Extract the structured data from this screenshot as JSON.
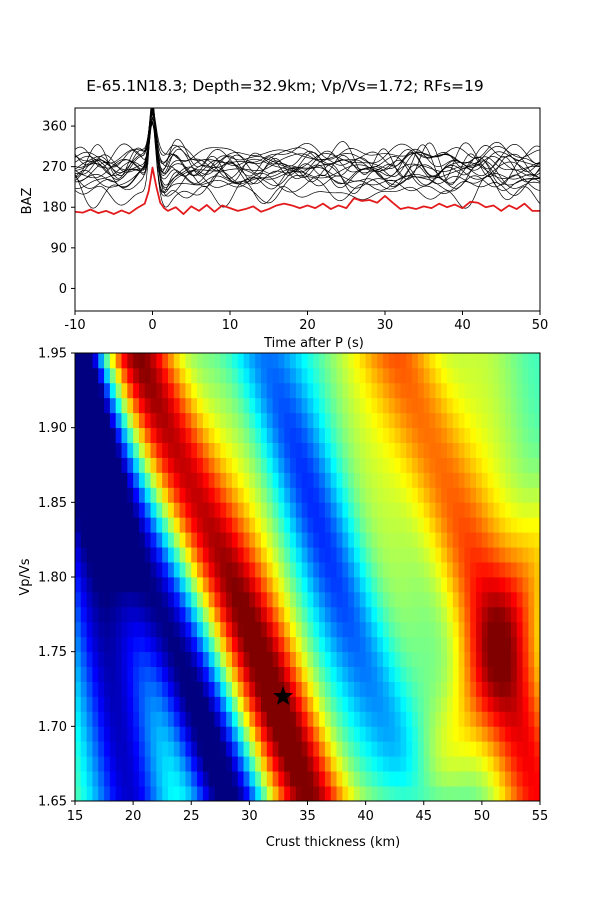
{
  "chart_data": [
    {
      "type": "line",
      "title": "E-65.1N18.3; Depth=32.9km; Vp/Vs=1.72; RFs=19",
      "xlabel": "Time after P (s)",
      "ylabel": "BAZ",
      "xlim": [
        -10,
        50
      ],
      "ylim": [
        -50,
        400
      ],
      "x_ticks": [
        -10,
        0,
        10,
        20,
        30,
        40,
        50
      ],
      "y_ticks": [
        0,
        90,
        180,
        270,
        360
      ],
      "traces": {
        "count": 19,
        "color": "#000000",
        "baseline_baz": [
          210,
          225,
          235,
          240,
          245,
          250,
          255,
          258,
          262,
          265,
          268,
          272,
          275,
          278,
          282,
          286,
          290,
          295,
          300
        ],
        "peak_time": 0,
        "peak_baz": 390
      },
      "stack": {
        "color": "#e31a1c",
        "baseline": 170,
        "x": [
          -10,
          -9,
          -8,
          -7,
          -6,
          -5,
          -4,
          -3,
          -2,
          -1,
          -0.5,
          0,
          0.5,
          1,
          1.5,
          2,
          3,
          4,
          5,
          6,
          7,
          8,
          9,
          10,
          11,
          12,
          13,
          14,
          15,
          16,
          17,
          18,
          19,
          20,
          21,
          22,
          23,
          24,
          25,
          26,
          27,
          28,
          29,
          30,
          31,
          32,
          33,
          34,
          35,
          36,
          37,
          38,
          39,
          40,
          41,
          42,
          43,
          44,
          45,
          46,
          47,
          48,
          49,
          50
        ],
        "y": [
          170,
          168,
          175,
          167,
          172,
          165,
          173,
          166,
          178,
          188,
          215,
          268,
          225,
          190,
          178,
          172,
          180,
          165,
          182,
          172,
          185,
          170,
          184,
          178,
          172,
          176,
          182,
          170,
          176,
          184,
          188,
          184,
          178,
          184,
          178,
          188,
          176,
          184,
          178,
          200,
          194,
          196,
          190,
          205,
          190,
          176,
          180,
          176,
          182,
          178,
          188,
          180,
          186,
          178,
          192,
          190,
          180,
          184,
          172,
          184,
          176,
          188,
          172,
          172
        ]
      }
    },
    {
      "type": "heatmap",
      "xlabel": "Crust thickness (km)",
      "ylabel": "Vp/Vs",
      "xlim": [
        15,
        55
      ],
      "ylim": [
        1.65,
        1.95
      ],
      "x_ticks": [
        15,
        20,
        25,
        30,
        35,
        40,
        45,
        50,
        55
      ],
      "y_ticks": [
        1.65,
        1.7,
        1.75,
        1.8,
        1.85,
        1.9,
        1.95
      ],
      "colormap": "jet",
      "grid": {
        "nx": 80,
        "ny": 30
      },
      "ridges": [
        {
          "kind": "min",
          "H_at_vpvs_1_68": 27,
          "slope_km_per_unit": 46,
          "amp": -1.0
        },
        {
          "kind": "max",
          "H_at_vpvs_1_68": 34,
          "slope_km_per_unit": 50,
          "amp": 1.0
        },
        {
          "kind": "min",
          "H_at_vpvs_1_68": 19.5,
          "slope_km_per_unit": 20,
          "amp": -0.85
        },
        {
          "kind": "max",
          "H_at_vpvs_1_68": 47,
          "slope_km_per_unit": -60,
          "amp": 0.35
        },
        {
          "kind": "min",
          "H_at_vpvs_1_68": 43,
          "slope_km_per_unit": 45,
          "amp": -0.55
        },
        {
          "kind": "max",
          "H_at_vpvs_1_68": 54,
          "slope_km_per_unit": 40,
          "amp": 0.65
        }
      ],
      "best_fit": {
        "thickness_km": 32.9,
        "vpvs": 1.72,
        "marker": "star",
        "color": "#000000"
      }
    }
  ]
}
